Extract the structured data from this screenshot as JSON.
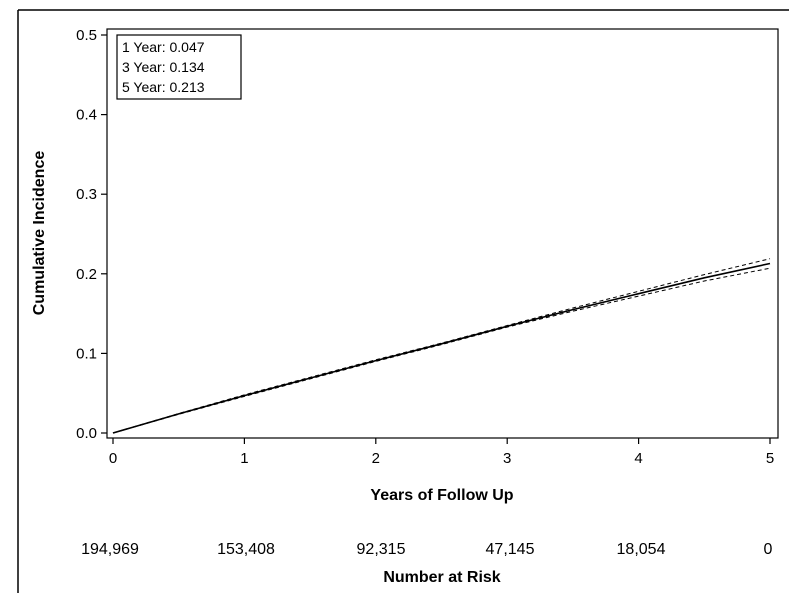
{
  "chart_data": {
    "type": "line",
    "title": "",
    "xlabel": "Years of Follow Up",
    "ylabel": "Cumulative Incidence",
    "xlim": [
      0,
      5
    ],
    "ylim": [
      0,
      0.5
    ],
    "x_ticks": [
      "0",
      "1",
      "2",
      "3",
      "4",
      "5"
    ],
    "y_ticks": [
      "0.0",
      "0.1",
      "0.2",
      "0.3",
      "0.4",
      "0.5"
    ],
    "grid": false,
    "legend_position": "top-left",
    "annotations": [
      "1 Year: 0.047",
      "3 Year: 0.134",
      "5 Year: 0.213"
    ],
    "series": [
      {
        "style": "solid",
        "x": [
          0,
          0.5,
          1,
          1.5,
          2,
          2.5,
          3,
          3.5,
          4,
          4.5,
          5
        ],
        "y": [
          0,
          0.024,
          0.047,
          0.069,
          0.091,
          0.112,
          0.134,
          0.155,
          0.175,
          0.195,
          0.213
        ]
      },
      {
        "style": "dashed",
        "x": [
          0,
          0.5,
          1,
          1.5,
          2,
          2.5,
          3,
          3.5,
          4,
          4.5,
          5
        ],
        "y": [
          0,
          0.0245,
          0.048,
          0.07,
          0.092,
          0.113,
          0.135,
          0.157,
          0.178,
          0.199,
          0.219
        ]
      },
      {
        "style": "dashed",
        "x": [
          0,
          0.5,
          1,
          1.5,
          2,
          2.5,
          3,
          3.5,
          4,
          4.5,
          5
        ],
        "y": [
          0,
          0.0235,
          0.046,
          0.068,
          0.09,
          0.111,
          0.133,
          0.153,
          0.172,
          0.191,
          0.207
        ]
      }
    ],
    "number_at_risk": {
      "title": "Number at Risk",
      "values": [
        "194,969",
        "153,408",
        "92,315",
        "47,145",
        "18,054",
        "0"
      ]
    }
  }
}
